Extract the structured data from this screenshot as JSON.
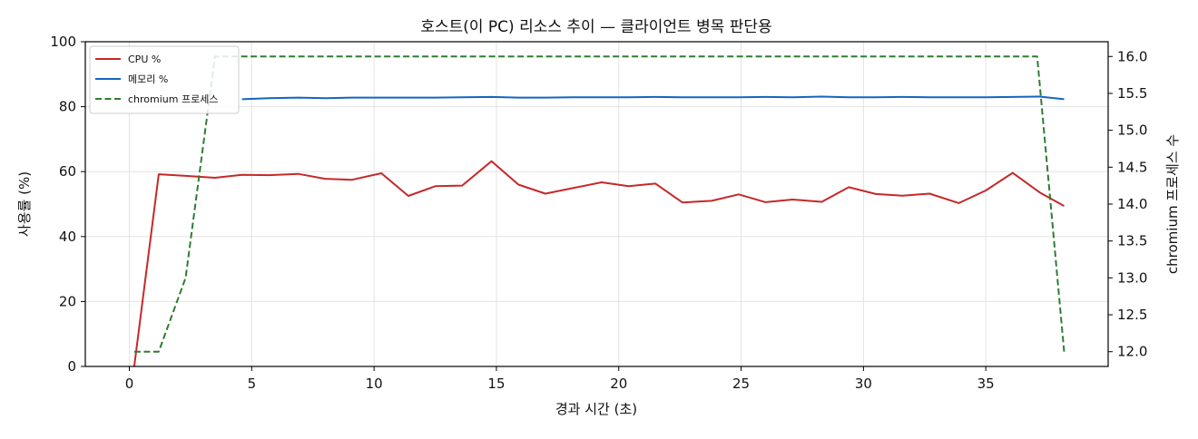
{
  "chart_data": {
    "type": "line",
    "title": "호스트(이 PC) 리소스 추이 — 클라이언트 병목 판단용",
    "xlabel": "경과 시간 (초)",
    "ylabel": "사용률 (%)",
    "y2label": "chromium 프로세스 수",
    "xlim": [
      -1.8,
      40.0
    ],
    "ylim": [
      0,
      100
    ],
    "y2lim": [
      11.8,
      16.2
    ],
    "xticks": [
      0,
      5,
      10,
      15,
      20,
      25,
      30,
      35
    ],
    "yticks": [
      0,
      20,
      40,
      60,
      80,
      100
    ],
    "y2ticks": [
      12.0,
      12.5,
      13.0,
      13.5,
      14.0,
      14.5,
      15.0,
      15.5,
      16.0
    ],
    "y2tick_labels": [
      "12.0",
      "12.5",
      "13.0",
      "13.5",
      "14.0",
      "14.5",
      "15.0",
      "15.5",
      "16.0"
    ],
    "grid": true,
    "legend_position": "upper-left",
    "series": [
      {
        "name": "CPU %",
        "axis": "left",
        "color": "#c62828",
        "dash": "solid",
        "x": [
          0.2,
          1.2,
          2.3,
          3.5,
          4.6,
          5.7,
          6.9,
          8.0,
          9.1,
          10.3,
          11.4,
          12.5,
          13.6,
          14.8,
          15.9,
          17.0,
          18.1,
          19.3,
          20.4,
          21.5,
          22.6,
          23.8,
          24.9,
          26.0,
          27.1,
          28.3,
          29.4,
          30.5,
          31.6,
          32.7,
          33.9,
          35.0,
          36.1,
          37.2,
          38.2
        ],
        "y": [
          0,
          59.2,
          58.7,
          58.1,
          59.0,
          58.9,
          59.3,
          57.8,
          57.5,
          59.5,
          52.5,
          55.5,
          55.7,
          63.2,
          56.0,
          53.2,
          54.9,
          56.7,
          55.5,
          56.3,
          50.5,
          51.0,
          53.0,
          50.6,
          51.4,
          50.7,
          55.2,
          53.1,
          52.6,
          53.2,
          50.3,
          54.2,
          59.6,
          53.6,
          49.4
        ]
      },
      {
        "name": "메모리 %",
        "axis": "left",
        "color": "#1565c0",
        "dash": "solid",
        "x": [
          4.6,
          5.7,
          6.9,
          8.0,
          9.1,
          10.3,
          11.4,
          12.5,
          13.6,
          14.8,
          15.9,
          17.0,
          18.1,
          19.3,
          20.4,
          21.5,
          22.6,
          23.8,
          24.9,
          26.0,
          27.1,
          28.3,
          29.4,
          30.5,
          31.6,
          32.7,
          33.9,
          35.0,
          36.1,
          37.2,
          38.2
        ],
        "y": [
          82.3,
          82.6,
          82.8,
          82.6,
          82.8,
          82.8,
          82.8,
          82.8,
          82.9,
          83.0,
          82.8,
          82.8,
          82.9,
          82.9,
          82.9,
          83.0,
          82.9,
          82.9,
          82.9,
          83.0,
          82.9,
          83.1,
          82.9,
          82.9,
          83.0,
          82.9,
          82.9,
          82.9,
          83.0,
          83.1,
          82.3
        ]
      },
      {
        "name": "chromium 프로세스",
        "axis": "right",
        "color": "#2e7d32",
        "dash": "dashed",
        "x": [
          0.2,
          1.2,
          2.3,
          3.5,
          4.6,
          5.7,
          6.9,
          8.0,
          9.1,
          10.3,
          11.4,
          12.5,
          13.6,
          14.8,
          15.9,
          17.0,
          18.1,
          19.3,
          20.4,
          21.5,
          22.6,
          23.8,
          24.9,
          26.0,
          27.1,
          28.3,
          29.4,
          30.5,
          31.6,
          32.7,
          33.9,
          35.0,
          36.1,
          37.1,
          38.2
        ],
        "y": [
          12,
          12,
          13,
          16,
          16,
          16,
          16,
          16,
          16,
          16,
          16,
          16,
          16,
          16,
          16,
          16,
          16,
          16,
          16,
          16,
          16,
          16,
          16,
          16,
          16,
          16,
          16,
          16,
          16,
          16,
          16,
          16,
          16,
          16,
          12
        ]
      }
    ]
  }
}
